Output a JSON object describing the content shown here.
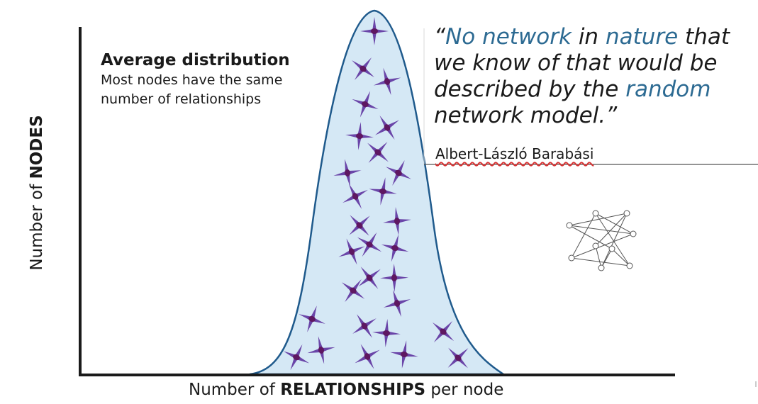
{
  "axes": {
    "y_label": {
      "prefix": "Number of ",
      "strong": "NODES"
    },
    "x_label": {
      "prefix": "Number of ",
      "strong": "RELATIONSHIPS",
      "suffix": " per node"
    }
  },
  "annotation": {
    "title": "Average distribution",
    "description": "Most nodes have the same number of relationships"
  },
  "quote": {
    "open_mark": "“",
    "hl1": "No network",
    "t1": " in ",
    "hl2": "nature",
    "t2": " that we know of that would be described by the ",
    "hl3": "random",
    "t3": " network model.",
    "close_mark": "”",
    "author": "Albert-László Barabási"
  },
  "colors": {
    "curve_fill": "#d5e8f5",
    "curve_stroke": "#1f5a8c",
    "node": "#5e1761",
    "spike": "#6a45a8",
    "axis": "#1a1a1a",
    "highlight": "#2c6a92"
  },
  "icons": [
    "star-node-icon",
    "random-network-icon"
  ]
}
